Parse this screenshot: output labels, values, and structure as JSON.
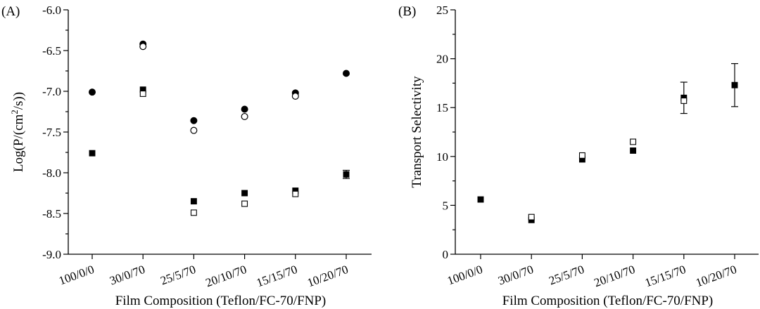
{
  "chart_data": [
    {
      "type": "scatter",
      "panel_label": "(A)",
      "title": "",
      "xlabel": "Film Composition (Teflon/FC-70/FNP)",
      "ylabel_prefix": "Log(P/(cm",
      "ylabel_sup": "2",
      "ylabel_suffix": "/s))",
      "categories": [
        "100/0/0",
        "30/0/70",
        "25/5/70",
        "20/10/70",
        "15/15/70",
        "10/20/70"
      ],
      "ylim": [
        -9.0,
        -6.0
      ],
      "yticks": [
        -9.0,
        -8.5,
        -8.0,
        -7.5,
        -7.0,
        -6.5,
        -6.0
      ],
      "ytick_labels": [
        "-9.0",
        "-8.5",
        "-8.0",
        "-7.5",
        "-7.0",
        "-6.5",
        "-6.0"
      ],
      "series": [
        {
          "name": "filled-circle",
          "marker": "circle",
          "filled": true,
          "values": [
            -7.01,
            -6.42,
            -7.36,
            -7.22,
            -7.02,
            -6.78
          ]
        },
        {
          "name": "open-circle",
          "marker": "circle",
          "filled": false,
          "values": [
            null,
            -6.45,
            -7.48,
            -7.31,
            -7.06,
            null
          ]
        },
        {
          "name": "filled-square",
          "marker": "square",
          "filled": true,
          "values": [
            -7.76,
            -6.98,
            -8.35,
            -8.25,
            -8.22,
            -8.02
          ],
          "errors": [
            null,
            null,
            null,
            null,
            null,
            0.05
          ]
        },
        {
          "name": "open-square",
          "marker": "square",
          "filled": false,
          "values": [
            null,
            -7.03,
            -8.49,
            -8.38,
            -8.26,
            null
          ]
        }
      ]
    },
    {
      "type": "scatter",
      "panel_label": "(B)",
      "title": "",
      "xlabel": "Film Composition (Teflon/FC-70/FNP)",
      "ylabel": "Transport Selectivity",
      "categories": [
        "100/0/0",
        "30/0/70",
        "25/5/70",
        "20/10/70",
        "15/15/70",
        "10/20/70"
      ],
      "ylim": [
        0,
        25
      ],
      "yticks": [
        0,
        5,
        10,
        15,
        20,
        25
      ],
      "ytick_labels": [
        "0",
        "5",
        "10",
        "15",
        "20",
        "25"
      ],
      "series": [
        {
          "name": "filled-square",
          "marker": "square",
          "filled": true,
          "values": [
            5.6,
            3.5,
            9.7,
            10.6,
            16.0,
            17.3
          ],
          "errors": [
            null,
            null,
            null,
            null,
            1.6,
            2.2
          ]
        },
        {
          "name": "open-square",
          "marker": "square",
          "filled": false,
          "values": [
            null,
            3.8,
            10.1,
            11.5,
            15.7,
            null
          ]
        }
      ]
    }
  ]
}
